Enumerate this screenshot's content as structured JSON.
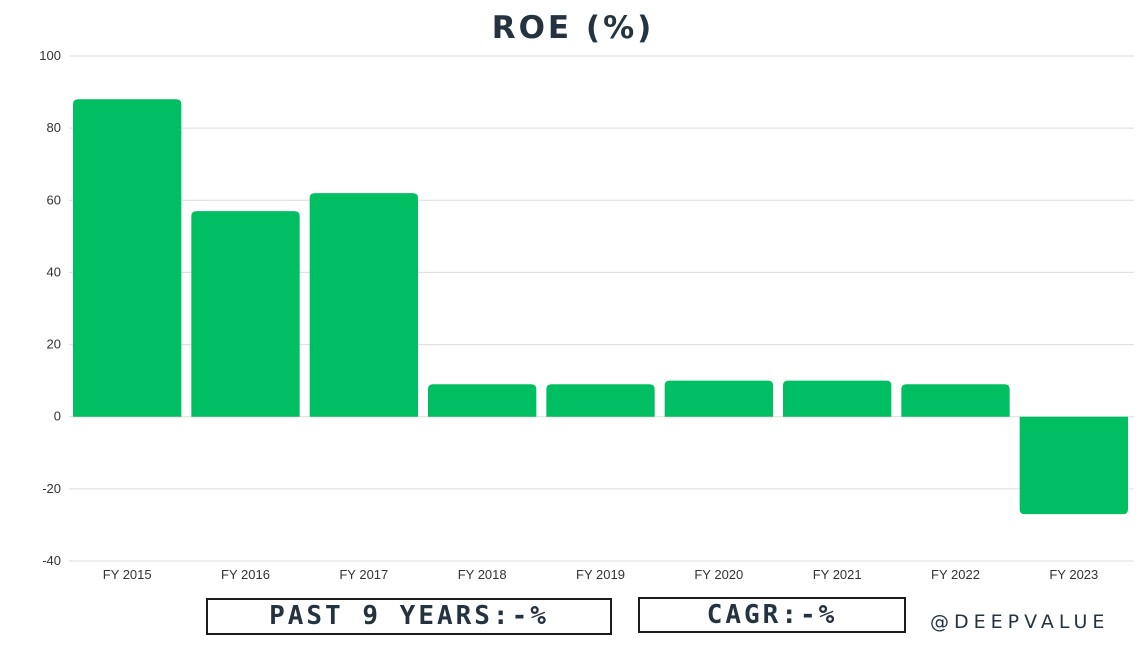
{
  "chart_data": {
    "type": "bar",
    "title": "ROE (%)",
    "categories": [
      "FY 2015",
      "FY 2016",
      "FY 2017",
      "FY 2018",
      "FY 2019",
      "FY 2020",
      "FY 2021",
      "FY 2022",
      "FY 2023"
    ],
    "values": [
      88,
      57,
      62,
      9,
      9,
      10,
      10,
      9,
      -27
    ],
    "ylim": [
      -40,
      100
    ],
    "yticks": [
      100,
      80,
      60,
      40,
      20,
      0,
      -20,
      -40
    ],
    "grid": true,
    "bar_color": "#00be62",
    "xlabel": "",
    "ylabel": ""
  },
  "footer": {
    "past_years": "PAST 9 YEARS:-%",
    "cagr": "CAGR:-%",
    "handle": "@DEEPVALUE"
  }
}
